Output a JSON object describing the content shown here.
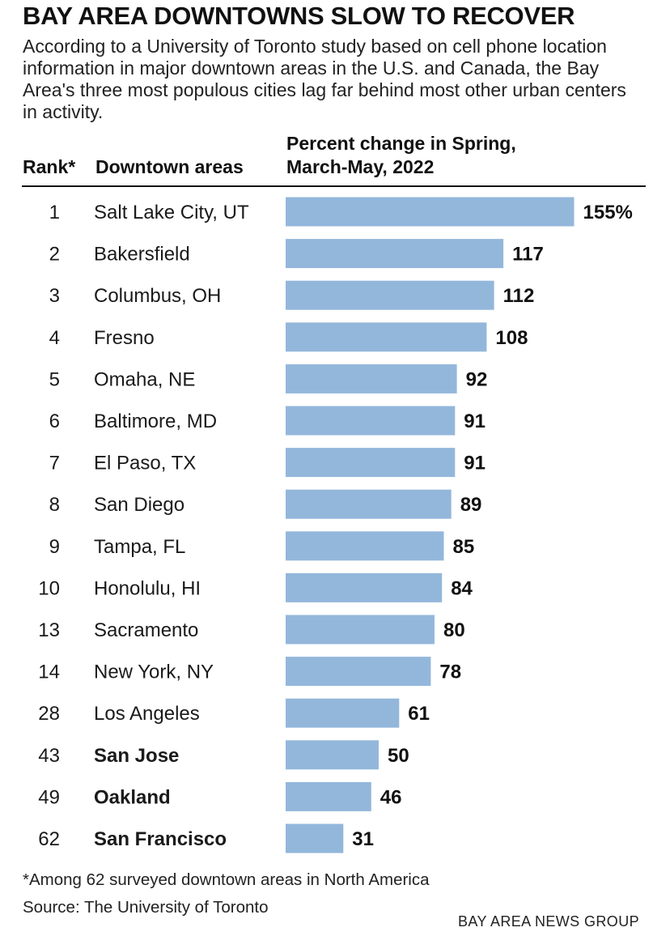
{
  "header": {
    "title": "BAY AREA DOWNTOWNS SLOW TO RECOVER",
    "subtitle": "According to a University of Toronto study based on cell phone location information in major downtown areas in the U.S. and Canada, the Bay Area's three most populous cities lag far behind most other urban centers in activity."
  },
  "columns": {
    "rank": "Rank*",
    "area": "Downtown areas",
    "percent_line1": "Percent change in Spring,",
    "percent_line2": "March-May, 2022"
  },
  "footer": {
    "footnote": "*Among 62 surveyed downtown areas in North America",
    "source": "Source: The University of Toronto",
    "credit": "BAY AREA NEWS GROUP"
  },
  "chart_data": {
    "type": "bar",
    "orientation": "horizontal",
    "title": "BAY AREA DOWNTOWNS SLOW TO RECOVER",
    "bar_color": "#93b7db",
    "rows": [
      {
        "rank": "1",
        "area": "Salt Lake City, UT",
        "value": 155,
        "label": "155%",
        "highlight": false
      },
      {
        "rank": "2",
        "area": "Bakersfield",
        "value": 117,
        "label": "117",
        "highlight": false
      },
      {
        "rank": "3",
        "area": "Columbus, OH",
        "value": 112,
        "label": "112",
        "highlight": false
      },
      {
        "rank": "4",
        "area": "Fresno",
        "value": 108,
        "label": "108",
        "highlight": false
      },
      {
        "rank": "5",
        "area": "Omaha, NE",
        "value": 92,
        "label": "92",
        "highlight": false
      },
      {
        "rank": "6",
        "area": "Baltimore, MD",
        "value": 91,
        "label": "91",
        "highlight": false
      },
      {
        "rank": "7",
        "area": "El Paso, TX",
        "value": 91,
        "label": "91",
        "highlight": false
      },
      {
        "rank": "8",
        "area": "San Diego",
        "value": 89,
        "label": "89",
        "highlight": false
      },
      {
        "rank": "9",
        "area": "Tampa, FL",
        "value": 85,
        "label": "85",
        "highlight": false
      },
      {
        "rank": "10",
        "area": "Honolulu, HI",
        "value": 84,
        "label": "84",
        "highlight": false
      },
      {
        "rank": "13",
        "area": "Sacramento",
        "value": 80,
        "label": "80",
        "highlight": false
      },
      {
        "rank": "14",
        "area": "New York, NY",
        "value": 78,
        "label": "78",
        "highlight": false
      },
      {
        "rank": "28",
        "area": "Los Angeles",
        "value": 61,
        "label": "61",
        "highlight": false
      },
      {
        "rank": "43",
        "area": "San Jose",
        "value": 50,
        "label": "50",
        "highlight": true
      },
      {
        "rank": "49",
        "area": "Oakland",
        "value": 46,
        "label": "46",
        "highlight": true
      },
      {
        "rank": "62",
        "area": "San Francisco",
        "value": 31,
        "label": "31",
        "highlight": true
      }
    ]
  }
}
